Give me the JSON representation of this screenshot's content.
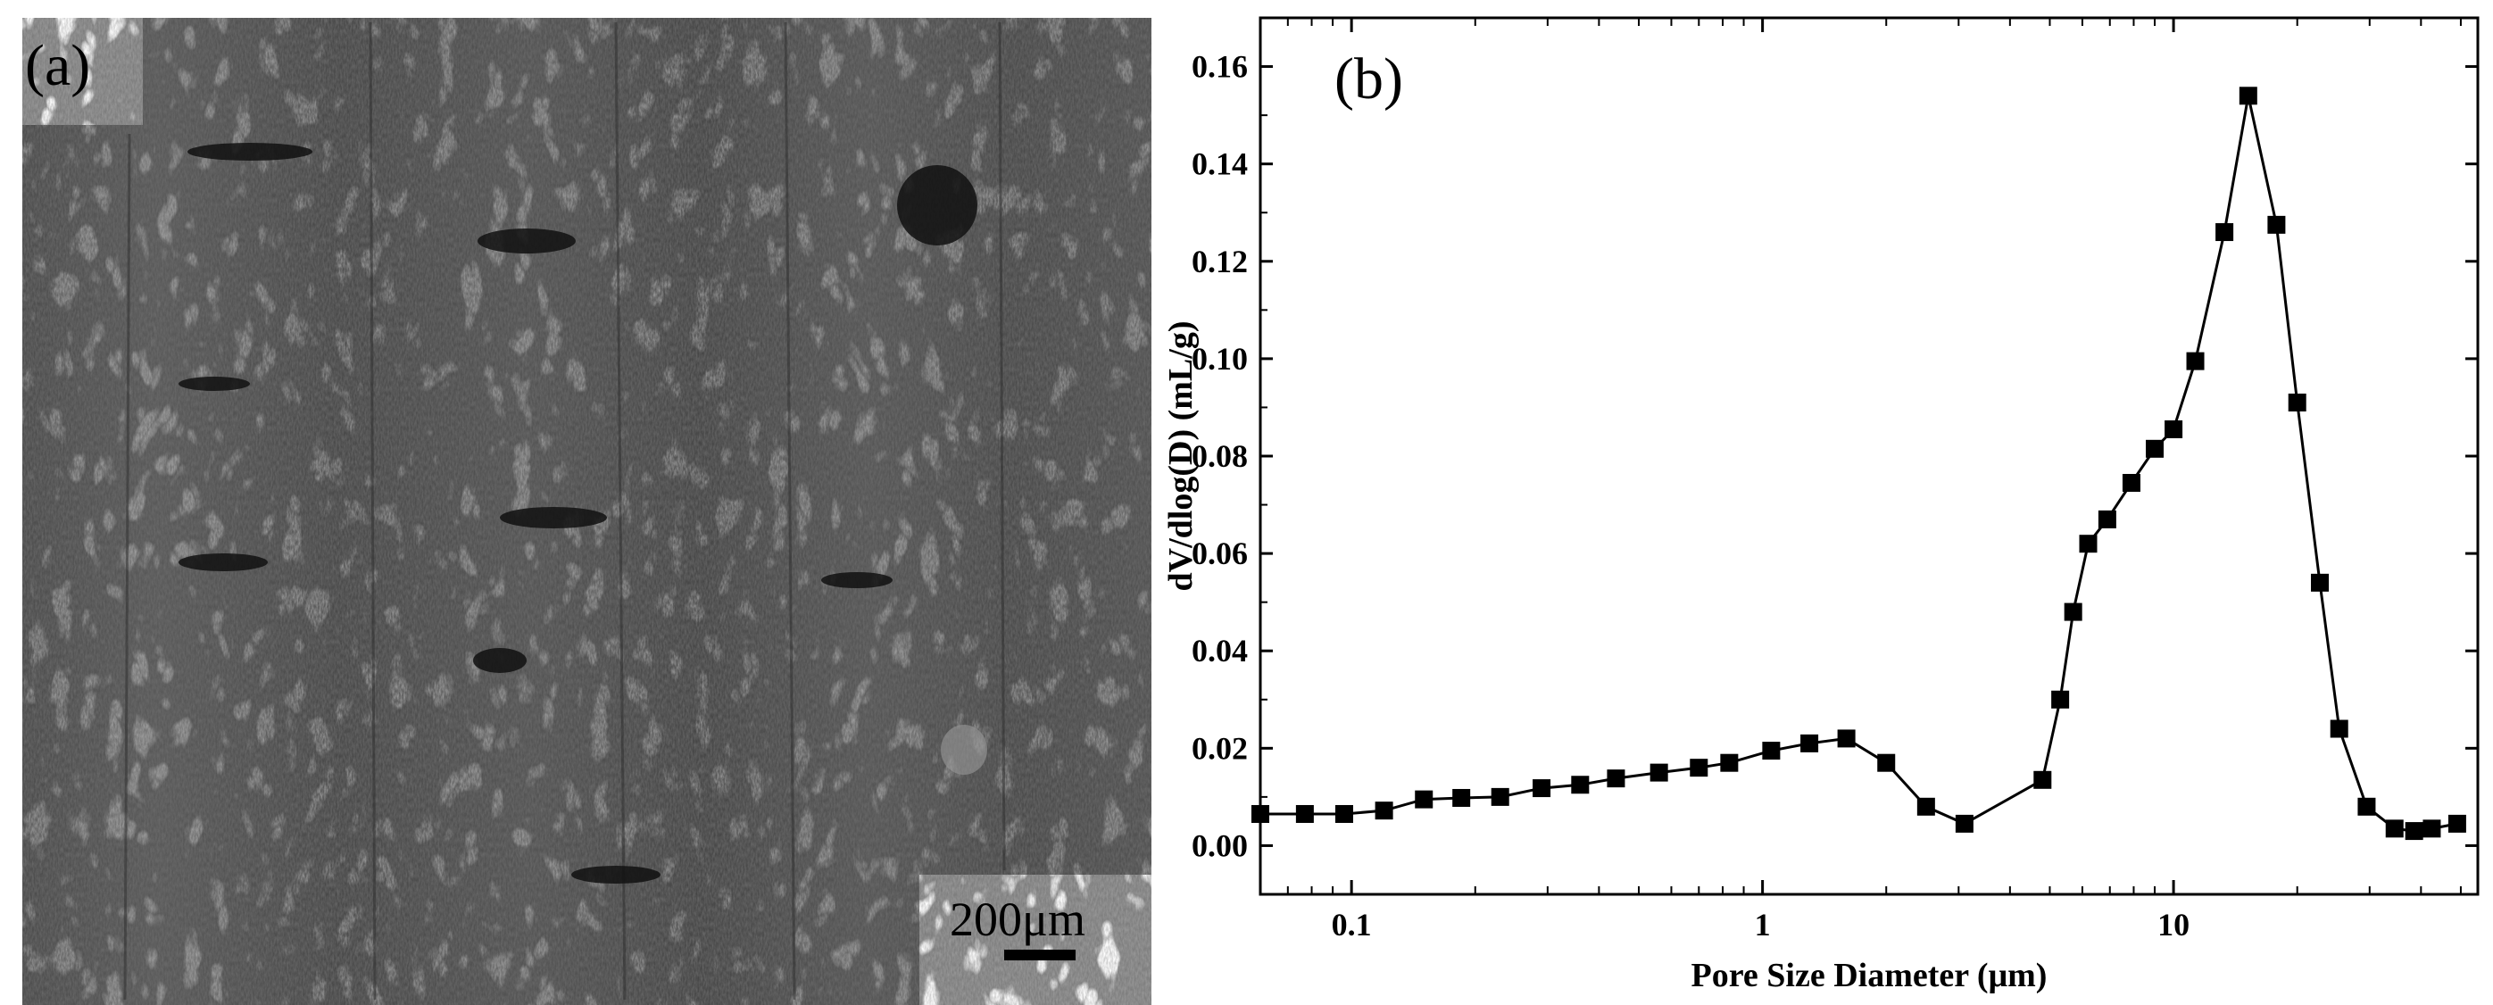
{
  "panel_a": {
    "label": "(a)",
    "scale_bar_label": "200μm"
  },
  "panel_b": {
    "label": "(b)"
  },
  "chart_data": {
    "type": "line",
    "x_scale": "log",
    "xlabel": "Pore Size Diameter (μm)",
    "ylabel": "dV/dlog(D) (mL/g)",
    "xlim": [
      0.06,
      55
    ],
    "ylim": [
      -0.01,
      0.17
    ],
    "x_ticks": [
      0.1,
      1,
      10
    ],
    "x_tick_labels": [
      "0.1",
      "1",
      "10"
    ],
    "y_ticks": [
      0.0,
      0.02,
      0.04,
      0.06,
      0.08,
      0.1,
      0.12,
      0.14,
      0.16
    ],
    "y_tick_labels": [
      "0.00",
      "0.02",
      "0.04",
      "0.06",
      "0.08",
      "0.10",
      "0.12",
      "0.14",
      "0.16"
    ],
    "marker": "square",
    "line_color": "#000000",
    "x": [
      0.06,
      0.077,
      0.096,
      0.12,
      0.15,
      0.185,
      0.23,
      0.29,
      0.36,
      0.44,
      0.56,
      0.7,
      0.83,
      1.05,
      1.3,
      1.6,
      2.0,
      2.5,
      3.1,
      4.8,
      5.3,
      5.7,
      6.2,
      6.9,
      7.9,
      9.0,
      10.0,
      11.3,
      13.3,
      15.2,
      17.8,
      20.0,
      22.7,
      25.3,
      29.5,
      34.5,
      38.5,
      42.5,
      49.0
    ],
    "y": [
      0.0065,
      0.0065,
      0.0065,
      0.0072,
      0.0095,
      0.0098,
      0.01,
      0.0118,
      0.0125,
      0.0138,
      0.015,
      0.016,
      0.017,
      0.0195,
      0.021,
      0.022,
      0.017,
      0.008,
      0.0045,
      0.0135,
      0.03,
      0.048,
      0.062,
      0.067,
      0.0745,
      0.0815,
      0.0855,
      0.0995,
      0.126,
      0.154,
      0.1275,
      0.091,
      0.054,
      0.024,
      0.008,
      0.0035,
      0.003,
      0.0035,
      0.0045
    ]
  }
}
